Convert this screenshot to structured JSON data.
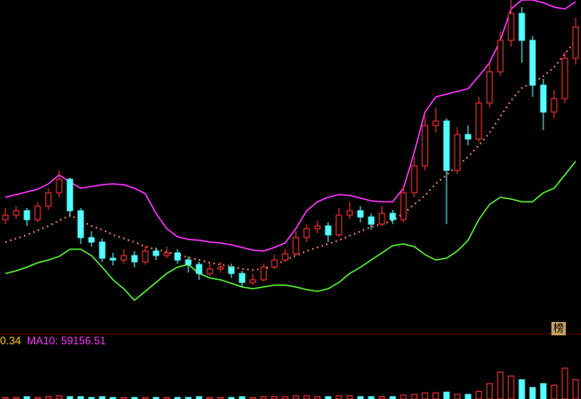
{
  "chart_data": {
    "type": "candlestick",
    "ylim": [
      0,
      370
    ],
    "up_color": "#ff3232",
    "down_color": "#54ffff",
    "open": [
      125,
      130,
      135,
      125,
      140,
      155,
      170,
      135,
      105,
      100,
      82,
      80,
      85,
      78,
      90,
      85,
      88,
      80,
      75,
      65,
      70,
      72,
      65,
      55,
      58,
      72,
      80,
      87,
      105,
      115,
      118,
      108,
      130,
      135,
      128,
      120,
      132,
      125,
      155,
      185,
      230,
      235,
      180,
      220,
      215,
      255,
      290,
      325,
      355,
      325,
      275,
      245,
      260,
      305
    ],
    "high": [
      138,
      140,
      138,
      145,
      160,
      180,
      172,
      138,
      112,
      104,
      88,
      92,
      90,
      96,
      94,
      95,
      92,
      84,
      78,
      76,
      78,
      76,
      68,
      64,
      76,
      86,
      92,
      112,
      120,
      124,
      122,
      138,
      145,
      140,
      132,
      140,
      136,
      162,
      195,
      240,
      250,
      238,
      228,
      230,
      262,
      300,
      335,
      370,
      362,
      330,
      282,
      270,
      312,
      350
    ],
    "low": [
      120,
      126,
      118,
      122,
      136,
      150,
      128,
      98,
      95,
      78,
      74,
      76,
      72,
      75,
      80,
      82,
      76,
      66,
      58,
      62,
      66,
      60,
      50,
      52,
      56,
      70,
      78,
      85,
      100,
      110,
      100,
      106,
      126,
      122,
      114,
      118,
      120,
      122,
      150,
      180,
      222,
      120,
      176,
      208,
      212,
      250,
      285,
      318,
      300,
      262,
      225,
      238,
      255,
      298
    ],
    "close": [
      130,
      135,
      125,
      140,
      155,
      170,
      135,
      105,
      100,
      82,
      80,
      85,
      78,
      90,
      85,
      88,
      80,
      75,
      65,
      70,
      72,
      65,
      55,
      58,
      72,
      80,
      87,
      105,
      115,
      118,
      108,
      130,
      135,
      128,
      120,
      132,
      125,
      155,
      185,
      230,
      235,
      180,
      220,
      215,
      255,
      290,
      325,
      355,
      325,
      275,
      245,
      260,
      305,
      340
    ],
    "upper_band": {
      "color": "#ff33ff",
      "values": [
        150,
        153,
        156,
        159,
        165,
        175,
        167,
        160,
        162,
        164,
        165,
        164,
        160,
        154,
        132,
        115,
        106,
        103,
        102,
        100,
        99,
        97,
        94,
        91,
        90,
        94,
        99,
        115,
        135,
        145,
        150,
        153,
        152,
        149,
        146,
        145,
        145,
        160,
        200,
        245,
        262,
        265,
        268,
        271,
        285,
        300,
        325,
        360,
        370,
        370,
        367,
        362,
        360,
        368
      ]
    },
    "middle_band": {
      "color": "#ff8866",
      "values": [
        100,
        104,
        108,
        113,
        118,
        124,
        130,
        124,
        118,
        114,
        108,
        104,
        100,
        95,
        92,
        89,
        86,
        83,
        80,
        77,
        75,
        73,
        70,
        69,
        70,
        74,
        80,
        85,
        90,
        94,
        98,
        102,
        107,
        112,
        117,
        120,
        124,
        132,
        142,
        152,
        165,
        175,
        185,
        195,
        208,
        222,
        240,
        258,
        272,
        278,
        285,
        295,
        310,
        325
      ]
    },
    "lower_band": {
      "color": "#55ee33",
      "values": [
        65,
        68,
        72,
        77,
        80,
        84,
        92,
        92,
        85,
        72,
        58,
        48,
        35,
        45,
        55,
        65,
        72,
        75,
        65,
        60,
        58,
        54,
        50,
        48,
        50,
        52,
        52,
        50,
        47,
        45,
        48,
        55,
        65,
        72,
        80,
        88,
        96,
        98,
        95,
        86,
        80,
        82,
        90,
        102,
        125,
        142,
        150,
        148,
        145,
        145,
        155,
        160,
        175,
        190
      ]
    },
    "volume": {
      "ylim": [
        0,
        70
      ],
      "values": [
        2,
        2,
        3,
        2,
        3,
        4,
        3,
        3,
        2,
        3,
        2,
        2,
        2,
        2,
        2,
        2,
        2,
        2,
        3,
        2,
        2,
        2,
        3,
        2,
        3,
        3,
        3,
        4,
        4,
        3,
        3,
        4,
        4,
        3,
        3,
        3,
        3,
        5,
        6,
        8,
        8,
        9,
        6,
        6,
        10,
        20,
        35,
        30,
        25,
        15,
        20,
        18,
        40,
        25
      ]
    },
    "indicator_fragment": {
      "text": "0.34",
      "color": "#ffcc00"
    },
    "indicator_ma10": {
      "text": "MA10: 59156.51",
      "color": "#ff33ff"
    },
    "badge": "榜"
  }
}
